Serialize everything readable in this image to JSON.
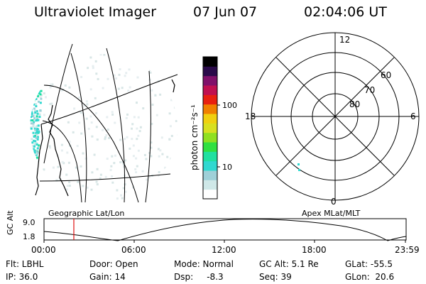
{
  "header": {
    "title": "Ultraviolet Imager",
    "date": "07 Jun 07",
    "time": "02:04:06 UT"
  },
  "colorbar": {
    "unit_label": "photon cm⁻²s⁻¹",
    "tick_labels": [
      "100",
      "10"
    ],
    "colors": [
      "#ffffff",
      "#cfe8e8",
      "#9fd0d8",
      "#30d8d0",
      "#20e0a0",
      "#30e040",
      "#90e020",
      "#d8e020",
      "#f0d010",
      "#f08000",
      "#e82010",
      "#c01050",
      "#80106a",
      "#2a0a4a",
      "#000000"
    ]
  },
  "geo_map": {
    "caption": "Geographic Lat/Lon"
  },
  "polar_plot": {
    "caption": "Apex MLat/MLT",
    "mlt_labels": {
      "top": "12",
      "left": "18",
      "right": "6",
      "bottom": "0"
    },
    "lat_labels": [
      "60",
      "70",
      "80"
    ]
  },
  "altitude_panel": {
    "ylabel": "GC Alt",
    "y_ticks": [
      "9.0",
      "1.8"
    ],
    "x_ticks": [
      "00:00",
      "06:00",
      "12:00",
      "18:00",
      "23:59"
    ],
    "current_time_marker_color": "#e01010"
  },
  "info": {
    "flt": "Flt: LBHL",
    "door": "Door: Open",
    "mode": "Mode: Normal",
    "gc_alt": "GC Alt: 5.1 Re",
    "glat": "GLat:  -55.5",
    "ip": "IP: 36.0",
    "gain": "Gain: 14",
    "dsp": "Dsp:     -8.3",
    "seq": "Seq: 39",
    "glon": "GLon:  20.6"
  }
}
